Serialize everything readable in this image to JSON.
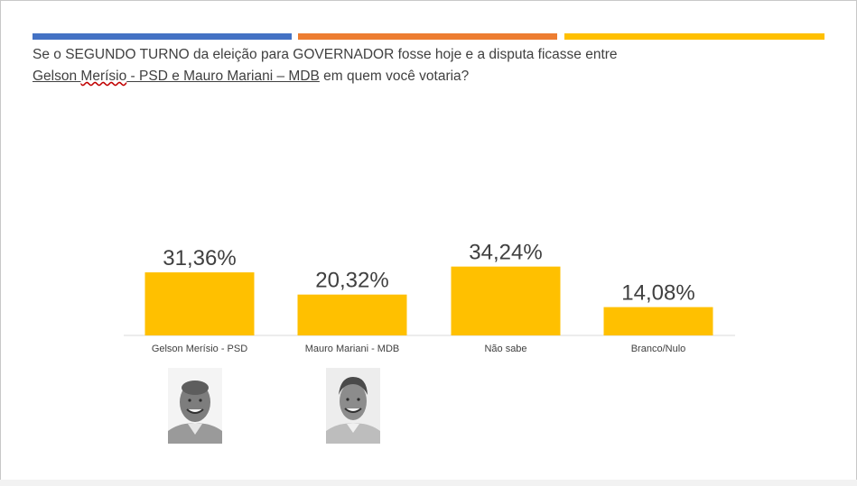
{
  "colors": {
    "band_blue": "#4472c4",
    "band_orange": "#ed7d31",
    "band_yellow": "#ffc000",
    "bar": "#ffc000",
    "text": "#404040",
    "axis": "#d9d9d9"
  },
  "question": {
    "line1": "Se o SEGUNDO TURNO da eleição para GOVERNADOR fosse hoje e a disputa ficasse entre",
    "line2_names_a": "Gelson ",
    "line2_names_b": "Merísio",
    "line2_names_c": " - PSD e Mauro Mariani – MDB",
    "line2_rest": " em quem você votaria?"
  },
  "chart_data": {
    "type": "bar",
    "title": "",
    "xlabel": "",
    "ylabel": "",
    "categories": [
      "Gelson Merísio - PSD",
      "Mauro Mariani - MDB",
      "Não sabe",
      "Branco/Nulo"
    ],
    "values": [
      31.36,
      20.32,
      34.24,
      14.08
    ],
    "data_labels": [
      "31,36%",
      "20,32%",
      "34,24%",
      "14,08%"
    ],
    "ylim": [
      0,
      100
    ],
    "grid": false,
    "legend": "none"
  },
  "photos": [
    {
      "name": "candidate-photo-gelson-merisio",
      "icon": "portrait-icon"
    },
    {
      "name": "candidate-photo-mauro-mariani",
      "icon": "portrait-icon"
    }
  ]
}
